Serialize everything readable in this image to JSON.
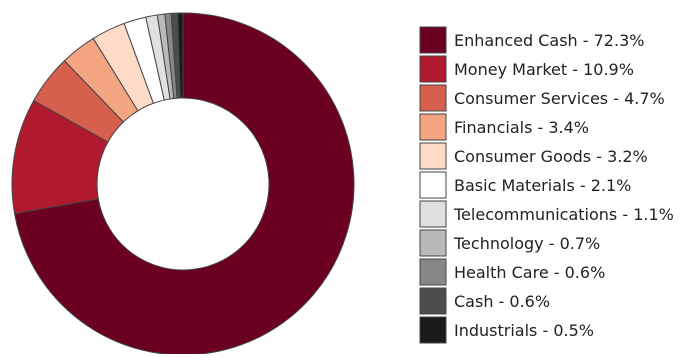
{
  "chart_data": {
    "type": "pie",
    "style": "donut",
    "legend_position": "right",
    "slices": [
      {
        "label": "Enhanced Cash",
        "value": 72.3,
        "legend_text": "Enhanced Cash - 72.3%",
        "color": "#6b0020"
      },
      {
        "label": "Money Market",
        "value": 10.9,
        "legend_text": "Money Market - 10.9%",
        "color": "#b0192e"
      },
      {
        "label": "Consumer Services",
        "value": 4.7,
        "legend_text": "Consumer Services - 4.7%",
        "color": "#d6604d"
      },
      {
        "label": "Financials",
        "value": 3.4,
        "legend_text": "Financials - 3.4%",
        "color": "#f4a582"
      },
      {
        "label": "Consumer Goods",
        "value": 3.2,
        "legend_text": "Consumer Goods - 3.2%",
        "color": "#fddbc7"
      },
      {
        "label": "Basic Materials",
        "value": 2.1,
        "legend_text": "Basic Materials - 2.1%",
        "color": "#ffffff"
      },
      {
        "label": "Telecommunications",
        "value": 1.1,
        "legend_text": "Telecommunications - 1.1%",
        "color": "#e0e0e0"
      },
      {
        "label": "Technology",
        "value": 0.7,
        "legend_text": "Technology - 0.7%",
        "color": "#bababa"
      },
      {
        "label": "Health Care",
        "value": 0.6,
        "legend_text": "Health Care - 0.6%",
        "color": "#878787"
      },
      {
        "label": "Cash",
        "value": 0.6,
        "legend_text": "Cash - 0.6%",
        "color": "#4d4d4d"
      },
      {
        "label": "Industrials",
        "value": 0.5,
        "legend_text": "Industrials - 0.5%",
        "color": "#1a1a1a"
      }
    ],
    "stroke_color": "#444444"
  }
}
